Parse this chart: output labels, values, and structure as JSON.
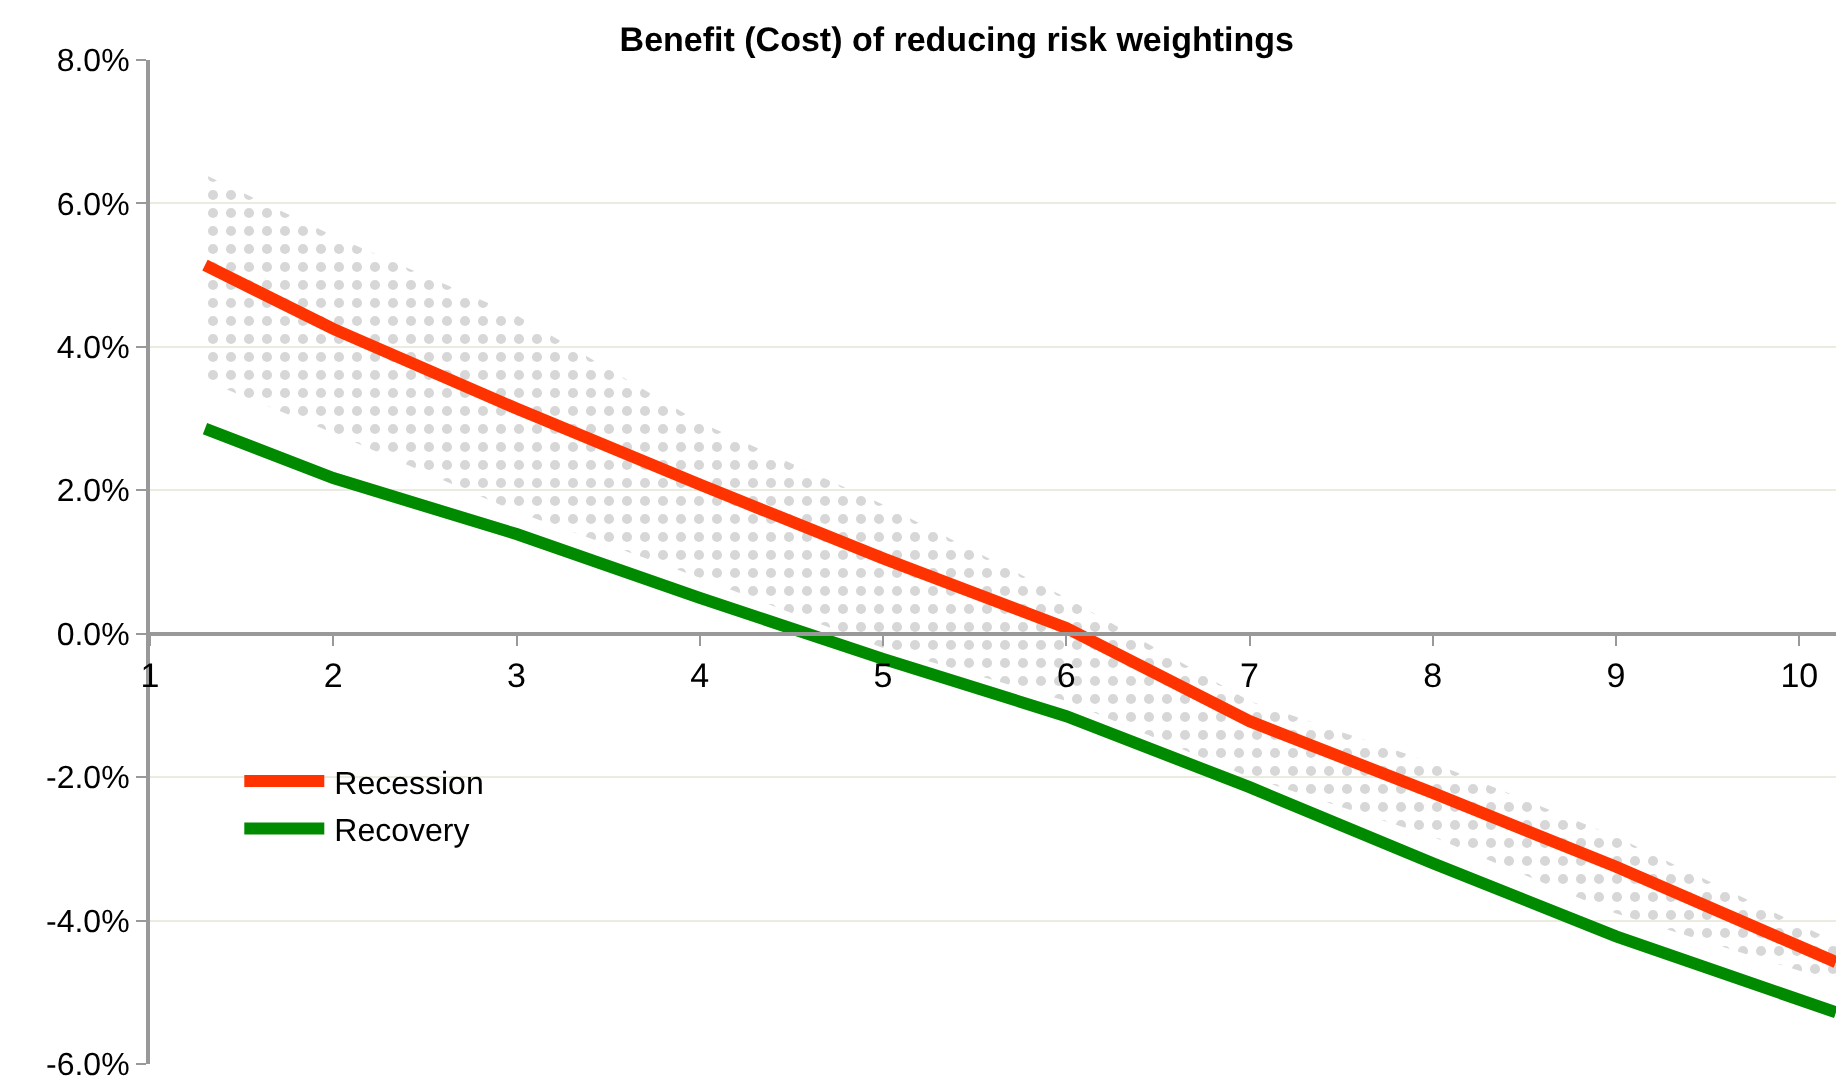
{
  "chart_data": {
    "type": "line",
    "title": "Benefit (Cost) of reducing risk weightings",
    "x": [
      1.3,
      2,
      3,
      4,
      5,
      6,
      7,
      8,
      9,
      10.2
    ],
    "series": [
      {
        "name": "Recovery",
        "color": "#008a00",
        "values": [
          2.86,
          2.17,
          1.39,
          0.5,
          -0.35,
          -1.15,
          -2.14,
          -3.2,
          -4.22,
          -5.28
        ]
      },
      {
        "name": "Recession",
        "color": "#ff3300",
        "values": [
          5.14,
          4.25,
          3.14,
          2.08,
          1.05,
          0.08,
          -1.22,
          -2.22,
          -3.25,
          -4.58
        ],
        "lower": [
          3.53,
          2.8,
          1.7,
          0.78,
          -0.2,
          -0.94,
          -2.0,
          -2.83,
          -3.9,
          -4.86
        ],
        "upper": [
          6.4,
          5.55,
          4.44,
          2.95,
          1.8,
          0.5,
          -0.94,
          -1.8,
          -2.83,
          -4.3
        ]
      }
    ],
    "xlim": [
      1,
      10.2
    ],
    "xticks": [
      1,
      2,
      3,
      4,
      5,
      6,
      7,
      8,
      9,
      10
    ],
    "ylim": [
      -6,
      8
    ],
    "yticks": [
      {
        "value": -6,
        "label": "-6.0%"
      },
      {
        "value": -4,
        "label": "-4.0%"
      },
      {
        "value": -2,
        "label": "-2.0%"
      },
      {
        "value": 0,
        "label": "0.0%"
      },
      {
        "value": 2,
        "label": "2.0%"
      },
      {
        "value": 4,
        "label": "4.0%"
      },
      {
        "value": 6,
        "label": "6.0%"
      },
      {
        "value": 8,
        "label": "8.0%"
      }
    ],
    "grid": "y",
    "legend": "bottom left",
    "marker": "none",
    "line_style": "solid"
  }
}
